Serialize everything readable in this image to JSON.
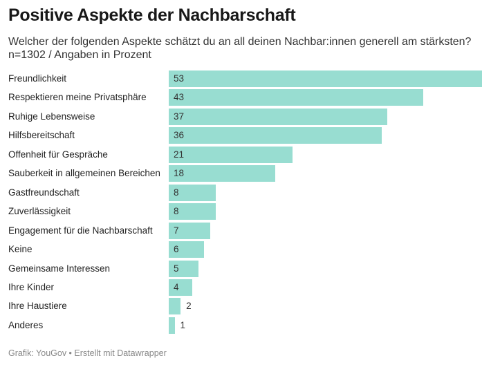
{
  "title": "Positive Aspekte der Nachbarschaft",
  "subtitle_line1": "Welcher der folgenden Aspekte schätzt du an all deinen Nachbar:innen generell am stärksten?",
  "subtitle_line2": "n=1302 / Angaben in Prozent",
  "footer": "Grafik: YouGov • Erstellt mit Datawrapper",
  "chart_data": {
    "type": "bar",
    "orientation": "horizontal",
    "title": "Positive Aspekte der Nachbarschaft",
    "categories": [
      "Freundlichkeit",
      "Respektieren meine Privatsphäre",
      "Ruhige Lebensweise",
      "Hilfsbereitschaft",
      "Offenheit für Gespräche",
      "Sauberkeit in allgemeinen Bereichen",
      "Gastfreundschaft",
      "Zuverlässigkeit",
      "Engagement für die Nachbarschaft",
      "Keine",
      "Gemeinsame Interessen",
      "Ihre Kinder",
      "Ihre Haustiere",
      "Anderes"
    ],
    "values": [
      53,
      43,
      37,
      36,
      21,
      18,
      8,
      8,
      7,
      6,
      5,
      4,
      2,
      1
    ],
    "xlim": [
      0,
      53
    ],
    "grid": false,
    "bar_color": "#98ddd1"
  }
}
